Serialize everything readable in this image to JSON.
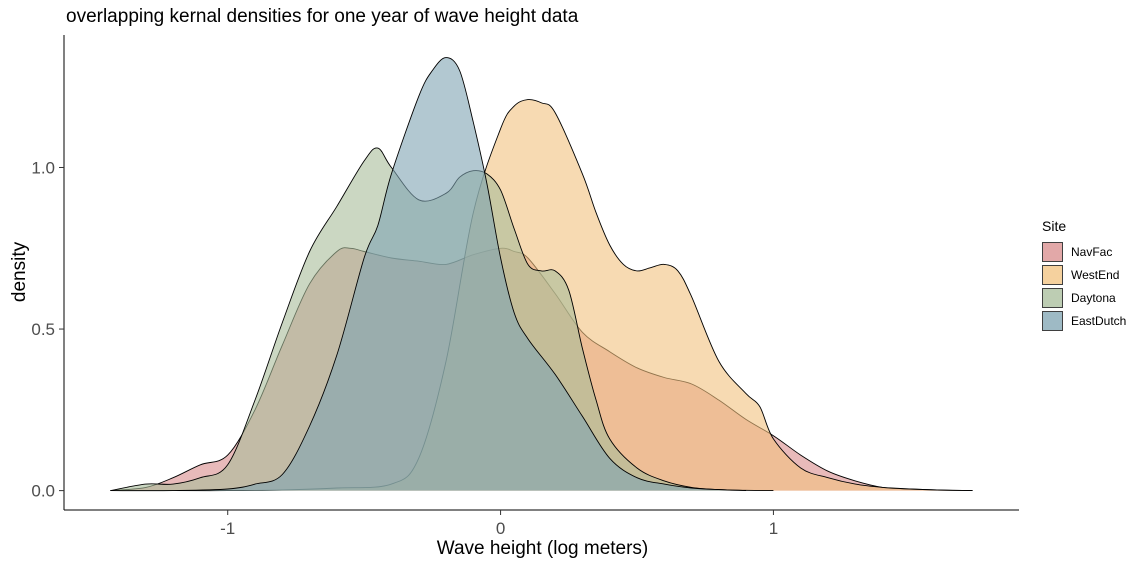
{
  "chart_data": {
    "type": "area",
    "title": "overlapping kernal densities for one year of wave height data",
    "xlabel": "Wave height (log meters)",
    "ylabel": "density",
    "xlim": [
      -1.6,
      1.9
    ],
    "ylim": [
      -0.06,
      1.41
    ],
    "xticks": [
      -1,
      0,
      1
    ],
    "xtick_labels": [
      "-1",
      "0",
      "1"
    ],
    "yticks": [
      0.0,
      0.5,
      1.0
    ],
    "ytick_labels": [
      "0.0",
      "0.5",
      "1.0"
    ],
    "grid": false,
    "legend": {
      "title": "Site",
      "placement": "right"
    },
    "series": [
      {
        "name": "NavFac",
        "color": "#D98C8C",
        "x": [
          -1.43,
          -1.3,
          -1.2,
          -1.1,
          -1.0,
          -0.9,
          -0.8,
          -0.7,
          -0.6,
          -0.55,
          -0.5,
          -0.4,
          -0.3,
          -0.2,
          -0.1,
          0.0,
          0.05,
          0.1,
          0.2,
          0.3,
          0.4,
          0.5,
          0.6,
          0.7,
          0.8,
          0.9,
          1.0,
          1.1,
          1.2,
          1.3,
          1.4,
          1.5,
          1.6,
          1.73
        ],
        "y": [
          0.0,
          0.01,
          0.04,
          0.08,
          0.11,
          0.25,
          0.45,
          0.64,
          0.74,
          0.75,
          0.74,
          0.72,
          0.71,
          0.7,
          0.73,
          0.75,
          0.74,
          0.72,
          0.61,
          0.49,
          0.43,
          0.38,
          0.35,
          0.33,
          0.28,
          0.22,
          0.17,
          0.11,
          0.06,
          0.03,
          0.01,
          0.005,
          0.002,
          0.0
        ]
      },
      {
        "name": "WestEnd",
        "color": "#F2C27E",
        "x": [
          -1.43,
          -1.2,
          -1.0,
          -0.8,
          -0.6,
          -0.4,
          -0.3,
          -0.2,
          -0.1,
          0.0,
          0.05,
          0.1,
          0.15,
          0.2,
          0.3,
          0.35,
          0.4,
          0.45,
          0.5,
          0.55,
          0.6,
          0.65,
          0.7,
          0.8,
          0.9,
          0.95,
          1.0,
          1.1,
          1.2,
          1.3,
          1.4,
          1.5,
          1.6,
          1.73
        ],
        "y": [
          0.0,
          0.0,
          0.0,
          0.002,
          0.008,
          0.02,
          0.1,
          0.4,
          0.86,
          1.12,
          1.19,
          1.21,
          1.2,
          1.17,
          0.98,
          0.86,
          0.76,
          0.7,
          0.68,
          0.69,
          0.7,
          0.68,
          0.6,
          0.4,
          0.3,
          0.26,
          0.16,
          0.07,
          0.04,
          0.02,
          0.01,
          0.005,
          0.002,
          0.0
        ]
      },
      {
        "name": "Daytona",
        "color": "#A8BD9A",
        "x": [
          -1.43,
          -1.3,
          -1.2,
          -1.1,
          -1.0,
          -0.9,
          -0.8,
          -0.7,
          -0.6,
          -0.5,
          -0.45,
          -0.4,
          -0.3,
          -0.2,
          -0.15,
          -0.1,
          -0.05,
          0.0,
          0.05,
          0.1,
          0.15,
          0.2,
          0.25,
          0.3,
          0.35,
          0.4,
          0.5,
          0.6,
          0.7,
          0.8,
          0.9,
          1.0
        ],
        "y": [
          0.0,
          0.02,
          0.02,
          0.04,
          0.08,
          0.28,
          0.52,
          0.74,
          0.88,
          1.02,
          1.06,
          1.0,
          0.9,
          0.92,
          0.97,
          0.99,
          0.98,
          0.93,
          0.81,
          0.7,
          0.68,
          0.68,
          0.62,
          0.44,
          0.28,
          0.16,
          0.07,
          0.03,
          0.01,
          0.003,
          0.001,
          0.0
        ]
      },
      {
        "name": "EastDutch",
        "color": "#7EA3B2",
        "x": [
          -1.43,
          -1.2,
          -1.0,
          -0.9,
          -0.8,
          -0.7,
          -0.6,
          -0.5,
          -0.45,
          -0.4,
          -0.3,
          -0.25,
          -0.2,
          -0.15,
          -0.1,
          -0.05,
          0.0,
          0.05,
          0.1,
          0.2,
          0.3,
          0.4,
          0.5,
          0.6,
          0.7,
          0.8,
          0.9
        ],
        "y": [
          0.0,
          0.0,
          0.005,
          0.02,
          0.05,
          0.2,
          0.42,
          0.72,
          0.82,
          0.98,
          1.22,
          1.3,
          1.34,
          1.3,
          1.14,
          0.95,
          0.72,
          0.55,
          0.47,
          0.36,
          0.23,
          0.1,
          0.04,
          0.02,
          0.008,
          0.003,
          0.0
        ]
      }
    ]
  }
}
